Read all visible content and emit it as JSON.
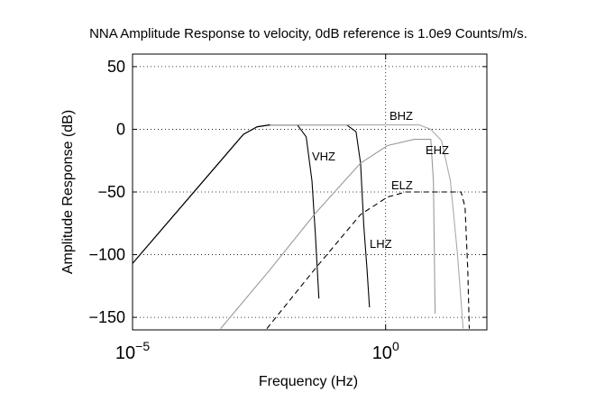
{
  "chart_data": {
    "type": "line",
    "title": "NNA Amplitude Response to velocity, 0dB reference is 1.0e9 Counts/m/s.",
    "xlabel": "Frequency (Hz)",
    "ylabel": "Amplitude Response (dB)",
    "xscale": "log",
    "grid": true,
    "xlim": [
      1e-05,
      100
    ],
    "ylim": [
      -160,
      60
    ],
    "xticks": [
      {
        "value": 1e-05,
        "label": "10",
        "exponent": "−5"
      },
      {
        "value": 1,
        "label": "10",
        "exponent": "0"
      }
    ],
    "yticks": [
      {
        "value": -150,
        "label": "−150"
      },
      {
        "value": -100,
        "label": "−100"
      },
      {
        "value": -50,
        "label": "−50"
      },
      0,
      50
    ],
    "series": [
      {
        "name": "VHZ",
        "color": "#000000",
        "style": "solid",
        "x": [
          1e-05,
          0.00155,
          0.0029,
          0.0052,
          0.018,
          0.027,
          0.035,
          0.041,
          0.048
        ],
        "values": [
          -107,
          -4,
          2,
          3.5,
          3.5,
          -6,
          -41,
          -84,
          -135
        ]
      },
      {
        "name": "LHZ",
        "color": "#000000",
        "style": "solid",
        "x": [
          1e-05,
          0.00155,
          0.0029,
          0.0052,
          0.17,
          0.26,
          0.32,
          0.37,
          0.43,
          0.48
        ],
        "values": [
          -107,
          -4,
          2,
          3.5,
          3.5,
          -2,
          -27,
          -77,
          -112,
          -142
        ]
      },
      {
        "name": "BHZ",
        "color": "#aaaaaa",
        "style": "solid",
        "x": [
          0.0052,
          4.6,
          7.8,
          12.7,
          19,
          26,
          34
        ],
        "values": [
          3.5,
          3.5,
          0,
          -9,
          -41,
          -98,
          -159
        ]
      },
      {
        "name": "EHZ",
        "color": "#999999",
        "style": "solid",
        "x": [
          0.00055,
          0.0052,
          0.041,
          0.32,
          1.09,
          3.7,
          7.8,
          8.8,
          9.5
        ],
        "values": [
          -159,
          -112,
          -67,
          -27,
          -13,
          -8,
          -8,
          -41,
          -147
        ]
      },
      {
        "name": "ELZ",
        "color": "#000000",
        "style": "dashed",
        "x": [
          0.0045,
          0.041,
          0.32,
          1.09,
          2.5,
          31,
          37,
          42,
          45
        ],
        "values": [
          -159,
          -111,
          -68,
          -54,
          -50,
          -50,
          -62,
          -112,
          -159
        ]
      }
    ]
  }
}
